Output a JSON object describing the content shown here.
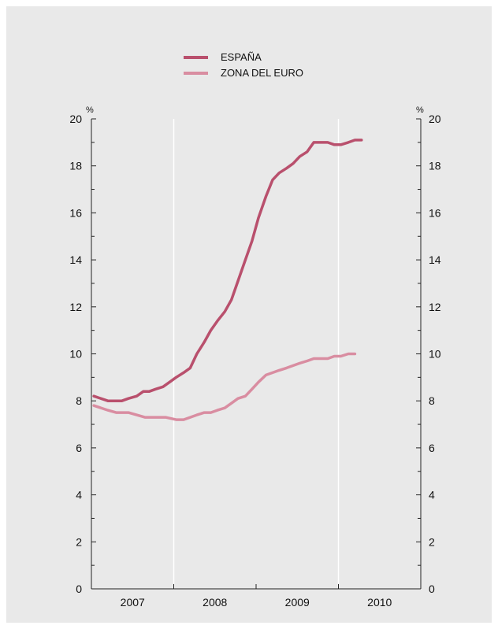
{
  "legend": {
    "items": [
      {
        "label": "ESPAÑA",
        "color": "#b9506d"
      },
      {
        "label": "ZONA DEL EURO",
        "color": "#d98da1"
      }
    ]
  },
  "axes": {
    "left_unit": "%",
    "right_unit": "%"
  },
  "chart_data": {
    "type": "line",
    "x_unit": "year",
    "xlim": [
      2006.6,
      2010.6
    ],
    "ylim": [
      0,
      20
    ],
    "y_ticks": [
      0,
      2,
      4,
      6,
      8,
      10,
      12,
      14,
      16,
      18,
      20
    ],
    "x_tick_labels": [
      "2007",
      "2008",
      "2009",
      "2010"
    ],
    "x_grid": [
      2007.6,
      2009.6
    ],
    "grid": "vertical",
    "legend_position": "top-center",
    "series": [
      {
        "name": "ESPAÑA",
        "color": "#b9506d",
        "x": [
          2006.63,
          2006.8,
          2006.97,
          2007.05,
          2007.15,
          2007.23,
          2007.3,
          2007.38,
          2007.47,
          2007.55,
          2007.63,
          2007.72,
          2007.8,
          2007.88,
          2007.97,
          2008.05,
          2008.13,
          2008.22,
          2008.3,
          2008.38,
          2008.47,
          2008.55,
          2008.63,
          2008.72,
          2008.8,
          2008.88,
          2008.97,
          2009.05,
          2009.13,
          2009.22,
          2009.3,
          2009.38,
          2009.47,
          2009.55,
          2009.63,
          2009.72,
          2009.8,
          2009.88
        ],
        "values": [
          8.2,
          8.0,
          8.0,
          8.1,
          8.2,
          8.4,
          8.4,
          8.5,
          8.6,
          8.8,
          9.0,
          9.2,
          9.4,
          10.0,
          10.5,
          11.0,
          11.4,
          11.8,
          12.3,
          13.1,
          14.0,
          14.8,
          15.8,
          16.7,
          17.4,
          17.7,
          17.9,
          18.1,
          18.4,
          18.6,
          19.0,
          19.0,
          19.0,
          18.9,
          18.9,
          19.0,
          19.1,
          19.1
        ]
      },
      {
        "name": "ZONA DEL EURO",
        "color": "#d98da1",
        "x": [
          2006.63,
          2006.8,
          2006.9,
          2006.97,
          2007.05,
          2007.15,
          2007.25,
          2007.38,
          2007.5,
          2007.63,
          2007.72,
          2007.8,
          2007.88,
          2007.97,
          2008.05,
          2008.13,
          2008.22,
          2008.3,
          2008.38,
          2008.47,
          2008.55,
          2008.63,
          2008.72,
          2008.8,
          2008.88,
          2008.97,
          2009.05,
          2009.13,
          2009.22,
          2009.3,
          2009.38,
          2009.47,
          2009.55,
          2009.63,
          2009.72,
          2009.8
        ],
        "values": [
          7.8,
          7.6,
          7.5,
          7.5,
          7.5,
          7.4,
          7.3,
          7.3,
          7.3,
          7.2,
          7.2,
          7.3,
          7.4,
          7.5,
          7.5,
          7.6,
          7.7,
          7.9,
          8.1,
          8.2,
          8.5,
          8.8,
          9.1,
          9.2,
          9.3,
          9.4,
          9.5,
          9.6,
          9.7,
          9.8,
          9.8,
          9.8,
          9.9,
          9.9,
          10.0,
          10.0
        ]
      }
    ]
  }
}
